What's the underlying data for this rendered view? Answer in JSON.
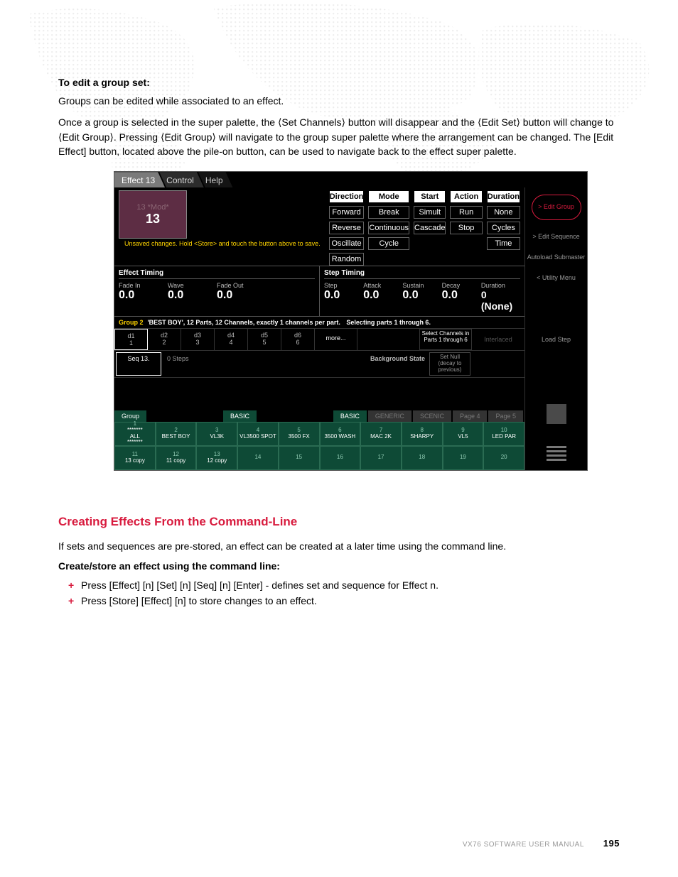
{
  "page": {
    "intro_h4": "To edit a group set:",
    "intro_p1": "Groups can be edited while associated to an effect.",
    "intro_p2": "Once a group is selected in the super palette, the ⟨Set Channels⟩ button will disappear and the ⟨Edit Set⟩ button will change to ⟨Edit Group⟩. Pressing ⟨Edit Group⟩ will navigate to the group super palette where the arrangement can be changed. The [Edit Effect] button, located above the pile-on button, can be used to navigate back to the effect super palette."
  },
  "tabs": {
    "t0": "Effect 13",
    "t1": "Control",
    "t2": "Help"
  },
  "preset": {
    "mod": "13 *Mod*",
    "num": "13"
  },
  "warning": "Unsaved changes.  Hold <Store> and touch the button above to save.",
  "columns": {
    "hdr": [
      "Direction",
      "Mode",
      "Start",
      "Action",
      "Duration"
    ],
    "r1": [
      "Forward",
      "Break",
      "Simult",
      "Run",
      "None"
    ],
    "r2": [
      "Reverse",
      "Continuous",
      "Cascade",
      "Stop",
      "Cycles"
    ],
    "r3": [
      "Oscillate",
      "Cycle",
      "",
      "",
      "Time"
    ],
    "r4": [
      "Random",
      "",
      "",
      "",
      ""
    ]
  },
  "timing": {
    "left_title": "Effect Timing",
    "right_title": "Step Timing",
    "left": [
      {
        "lab": "Fade In",
        "val": "0.0"
      },
      {
        "lab": "Wave",
        "val": "0.0"
      },
      {
        "lab": "Fade Out",
        "val": "0.0"
      }
    ],
    "right": [
      {
        "lab": "Step",
        "val": "0.0"
      },
      {
        "lab": "Attack",
        "val": "0.0"
      },
      {
        "lab": "Sustain",
        "val": "0.0"
      },
      {
        "lab": "Decay",
        "val": "0.0"
      },
      {
        "lab": "Duration",
        "val": "0 (None)"
      }
    ]
  },
  "group": {
    "label": "Group 2",
    "desc": "'BEST BOY', 12 Parts, 12 Channels, exactly 1 channels per part.",
    "sel": "Selecting parts 1 through 6.",
    "parts": [
      {
        "d": "d1",
        "n": "1"
      },
      {
        "d": "d2",
        "n": "2"
      },
      {
        "d": "d3",
        "n": "3"
      },
      {
        "d": "d4",
        "n": "4"
      },
      {
        "d": "d5",
        "n": "5"
      },
      {
        "d": "d6",
        "n": "6"
      }
    ],
    "more": "more...",
    "select_btn": "Select Channels in Parts 1 through 6",
    "interlaced": "Interlaced"
  },
  "seq": {
    "label": "Seq 13.",
    "steps": "0 Steps",
    "bg_label": "Background State",
    "bg_btn": "Set Null (decay to previous)"
  },
  "palette": {
    "tabs": [
      "Group",
      "BASIC",
      "BASIC",
      "GENERIC",
      "SCENIC",
      "Page 4",
      "Page 5"
    ],
    "row1": [
      {
        "n": "1",
        "t": "*******\nALL\n*******"
      },
      {
        "n": "2",
        "t": "BEST BOY"
      },
      {
        "n": "3",
        "t": "VL3K"
      },
      {
        "n": "4",
        "t": "VL3500 SPOT"
      },
      {
        "n": "5",
        "t": "3500 FX"
      },
      {
        "n": "6",
        "t": "3500 WASH"
      },
      {
        "n": "7",
        "t": "MAC 2K"
      },
      {
        "n": "8",
        "t": "SHARPY"
      },
      {
        "n": "9",
        "t": "VL5"
      },
      {
        "n": "10",
        "t": "LED PAR"
      }
    ],
    "row2": [
      {
        "n": "11",
        "t": "13 copy"
      },
      {
        "n": "12",
        "t": "11 copy"
      },
      {
        "n": "13",
        "t": "12 copy"
      },
      {
        "n": "14",
        "t": ""
      },
      {
        "n": "15",
        "t": ""
      },
      {
        "n": "16",
        "t": ""
      },
      {
        "n": "17",
        "t": ""
      },
      {
        "n": "18",
        "t": ""
      },
      {
        "n": "19",
        "t": ""
      },
      {
        "n": "20",
        "t": ""
      }
    ]
  },
  "side": {
    "edit_group": "> Edit Group",
    "edit_seq": "> Edit Sequence",
    "autoload": "Autoload Submaster",
    "utility": "< Utility Menu",
    "load_step": "Load Step"
  },
  "section2": {
    "h3": "Creating Effects From the Command-Line",
    "p1": "If sets and sequences are pre-stored, an effect can be created at a later time using the command line.",
    "h4": "Create/store an effect using the command line:",
    "b1": "Press [Effect] [n] [Set] [n] [Seq] [n] [Enter] - defines set and sequence for Effect n.",
    "b2": "Press [Store] [Effect] [n] to store changes to an effect."
  },
  "footer": {
    "manual": "VX76 SOFTWARE USER MANUAL",
    "page": "195"
  },
  "colors": {
    "accent_red": "#d81b3e",
    "preset_bg": "#5d2d44",
    "warning_yellow": "#ffd400",
    "palette_green": "#0e4a36"
  }
}
